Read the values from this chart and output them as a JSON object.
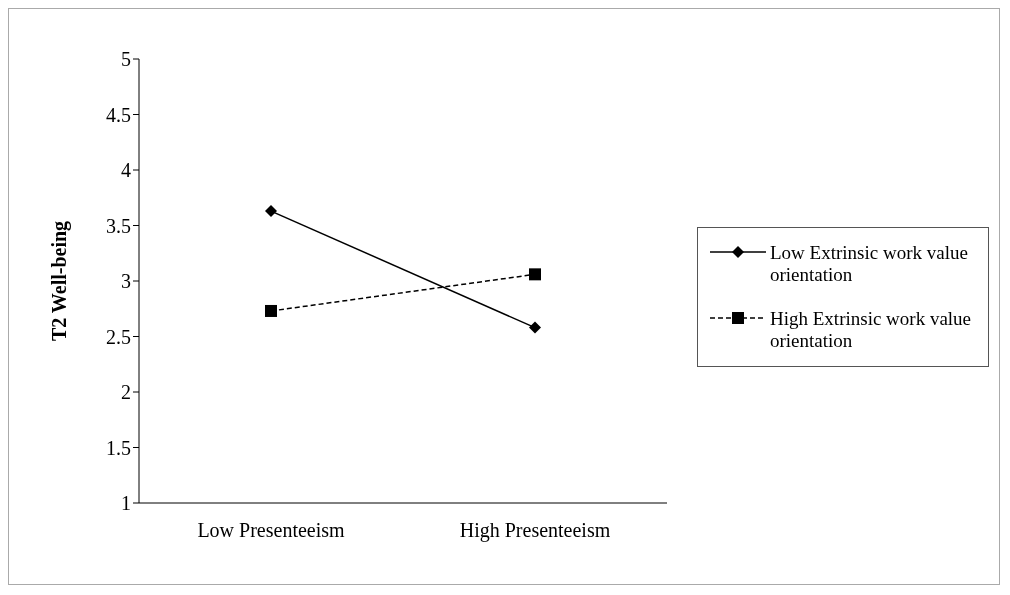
{
  "chart_data": {
    "type": "line",
    "ylabel": "T2  Well-being",
    "categories": [
      "Low Presenteeism",
      "High Presenteeism"
    ],
    "series": [
      {
        "name": "Low Extrinsic work value orientation",
        "color": "#000000",
        "values": [
          3.63,
          2.58
        ],
        "marker": "diamond",
        "line_style": "solid"
      },
      {
        "name": "High Extrinsic work value orientation",
        "color": "#000000",
        "values": [
          2.73,
          3.06
        ],
        "marker": "square",
        "line_style": "dashed"
      }
    ],
    "ylim": [
      1,
      5
    ],
    "yticks": [
      1,
      1.5,
      2,
      2.5,
      3,
      3.5,
      4,
      4.5,
      5
    ],
    "grid": false,
    "legend": "right"
  }
}
